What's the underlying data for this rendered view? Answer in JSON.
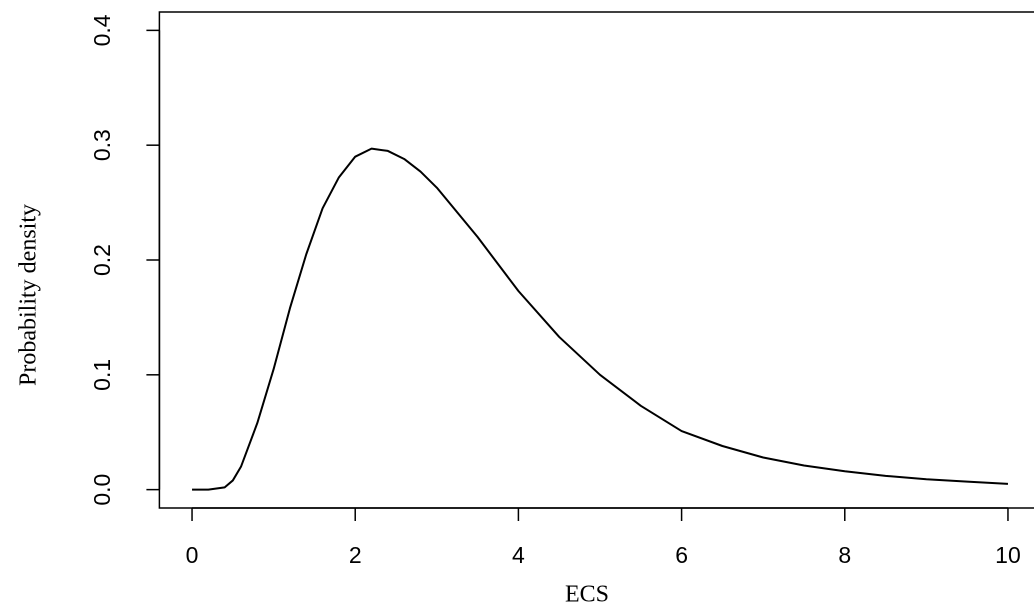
{
  "chart_data": {
    "type": "line",
    "x_label": "ECS",
    "y_label": "Probability density",
    "x": [
      0,
      0.2,
      0.4,
      0.5,
      0.6,
      0.8,
      1.0,
      1.2,
      1.4,
      1.6,
      1.8,
      2.0,
      2.2,
      2.4,
      2.6,
      2.8,
      3.0,
      3.5,
      4.0,
      4.5,
      5.0,
      5.5,
      6.0,
      6.5,
      7.0,
      7.5,
      8.0,
      8.5,
      9.0,
      9.5,
      10
    ],
    "series": [
      {
        "color": "#000000",
        "values": [
          0,
          0,
          0.002,
          0.008,
          0.02,
          0.058,
          0.105,
          0.158,
          0.205,
          0.245,
          0.272,
          0.29,
          0.297,
          0.295,
          0.288,
          0.277,
          0.263,
          0.22,
          0.173,
          0.133,
          0.1,
          0.073,
          0.051,
          0.038,
          0.028,
          0.021,
          0.016,
          0.012,
          0.009,
          0.007,
          0.005
        ]
      }
    ],
    "xlim": [
      -0.4,
      10.4
    ],
    "ylim": [
      -0.016,
      0.416
    ],
    "xticks": [
      0,
      2,
      4,
      6,
      8,
      10
    ],
    "yticks": [
      {
        "value": 0,
        "label": "0.0"
      },
      0.1,
      0.2,
      0.3,
      0.4
    ]
  }
}
